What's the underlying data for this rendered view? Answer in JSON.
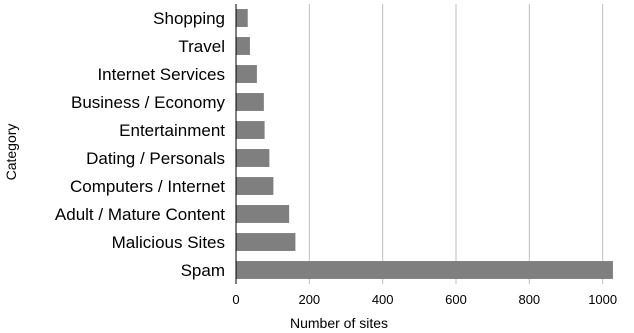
{
  "chart_data": {
    "type": "bar",
    "orientation": "horizontal",
    "categories": [
      "Spam",
      "Malicious Sites",
      "Adult / Mature Content",
      "Computers / Internet",
      "Dating / Personals",
      "Entertainment",
      "Business / Economy",
      "Internet Services",
      "Travel",
      "Shopping"
    ],
    "values": [
      1028,
      162,
      145,
      102,
      91,
      78,
      76,
      57,
      38,
      32
    ],
    "xlabel": "Number of sites",
    "ylabel": "Category",
    "xlim": [
      0,
      1080
    ],
    "xticks": [
      0,
      200,
      400,
      600,
      800,
      1000
    ],
    "xtick_labels": [
      "0",
      "200",
      "400",
      "600",
      "800",
      "1000"
    ],
    "grid": "vertical",
    "bar_color": "#7f7f7f",
    "grid_color": "#bfbfbf"
  }
}
